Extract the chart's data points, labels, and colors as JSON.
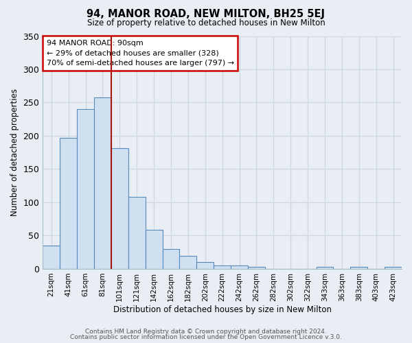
{
  "title": "94, MANOR ROAD, NEW MILTON, BH25 5EJ",
  "subtitle": "Size of property relative to detached houses in New Milton",
  "xlabel": "Distribution of detached houses by size in New Milton",
  "ylabel": "Number of detached properties",
  "bar_labels": [
    "21sqm",
    "41sqm",
    "61sqm",
    "81sqm",
    "101sqm",
    "121sqm",
    "142sqm",
    "162sqm",
    "182sqm",
    "202sqm",
    "222sqm",
    "242sqm",
    "262sqm",
    "282sqm",
    "302sqm",
    "322sqm",
    "343sqm",
    "363sqm",
    "383sqm",
    "403sqm",
    "423sqm"
  ],
  "bar_values": [
    35,
    197,
    240,
    258,
    181,
    108,
    59,
    30,
    20,
    10,
    5,
    5,
    3,
    0,
    0,
    0,
    3,
    0,
    3,
    0,
    3
  ],
  "bar_color": "#d0e0f0",
  "bar_edge_color": "#5588bb",
  "ylim": [
    0,
    350
  ],
  "yticks": [
    0,
    50,
    100,
    150,
    200,
    250,
    300,
    350
  ],
  "property_line_color": "#aa1111",
  "annotation_title": "94 MANOR ROAD: 90sqm",
  "annotation_line1": "← 29% of detached houses are smaller (328)",
  "annotation_line2": "70% of semi-detached houses are larger (797) →",
  "annotation_box_edgecolor": "#cc0000",
  "footer_line1": "Contains HM Land Registry data © Crown copyright and database right 2024.",
  "footer_line2": "Contains public sector information licensed under the Open Government Licence v.3.0.",
  "background_color": "#e8eef4",
  "plot_bg_color": "#e8eef4",
  "grid_color": "#d0d8e0"
}
